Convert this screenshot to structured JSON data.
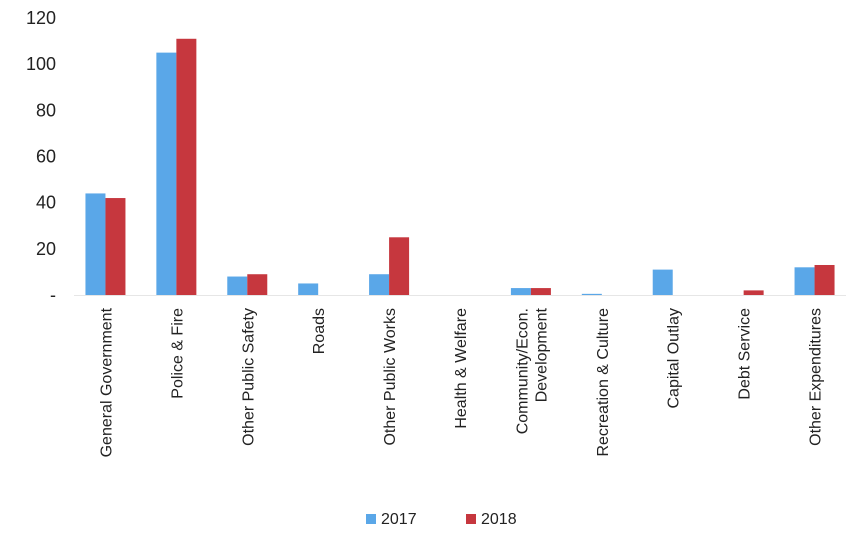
{
  "chart_data": {
    "type": "bar",
    "categories": [
      [
        "General Government"
      ],
      [
        "Police & Fire"
      ],
      [
        "Other Public Safety"
      ],
      [
        "Roads"
      ],
      [
        "Other Public Works"
      ],
      [
        "Health & Welfare"
      ],
      [
        "Community/Econ.",
        "Development"
      ],
      [
        "Recreation & Culture"
      ],
      [
        "Capital Outlay"
      ],
      [
        "Debt Service"
      ],
      [
        "Other Expenditures"
      ]
    ],
    "series": [
      {
        "name": "2017",
        "color": "#5aa7e8",
        "values": [
          44,
          105,
          8,
          5,
          9,
          0,
          3,
          0.5,
          11,
          0,
          12
        ]
      },
      {
        "name": "2018",
        "color": "#c6373e",
        "values": [
          42,
          111,
          9,
          0,
          25,
          0,
          3,
          0,
          0,
          2,
          13
        ]
      }
    ],
    "yticks": [
      0,
      20,
      40,
      60,
      80,
      100,
      120
    ],
    "ytick_labels": [
      "-",
      "20",
      "40",
      "60",
      "80",
      "100",
      "120"
    ],
    "ylim": [
      0,
      120
    ],
    "title": "",
    "xlabel": "",
    "ylabel": "",
    "grid": false,
    "legend_position": "bottom-center"
  }
}
